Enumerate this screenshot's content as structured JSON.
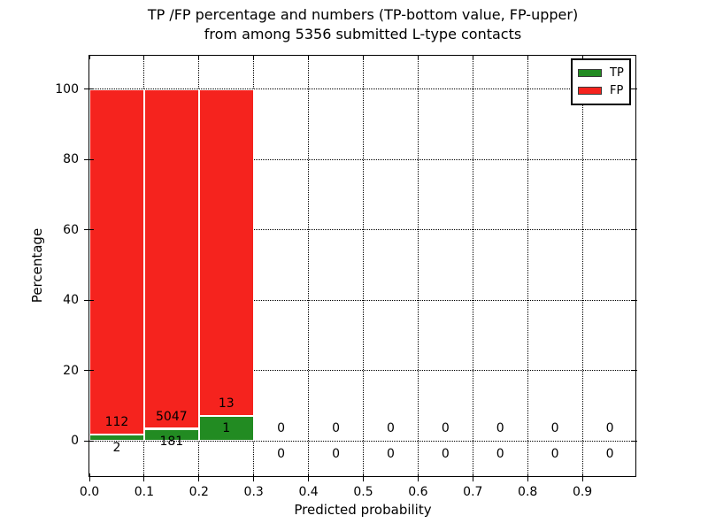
{
  "figure": {
    "title_line1": "TP /FP percentage and numbers (TP-bottom value, FP-upper)",
    "title_line2": "from among 5356 submitted L-type contacts",
    "xlabel": "Predicted probability",
    "ylabel": "Percentage"
  },
  "legend": {
    "items": [
      {
        "label": "TP",
        "color": "#228b22"
      },
      {
        "label": "FP",
        "color": "#f5231e"
      }
    ]
  },
  "chart_data": {
    "type": "bar",
    "stacked": true,
    "title": "TP /FP percentage and numbers (TP-bottom value, FP-upper) from among 5356 submitted L-type contacts",
    "xlabel": "Predicted probability",
    "ylabel": "Percentage",
    "total_submitted": 5356,
    "xlim": [
      0.0,
      1.0
    ],
    "ylim": [
      -10.5,
      109.5
    ],
    "xticks": [
      0.0,
      0.1,
      0.2,
      0.3,
      0.4,
      0.5,
      0.6,
      0.7,
      0.8,
      0.9
    ],
    "xtick_labels": [
      "0.0",
      "0.1",
      "0.2",
      "0.3",
      "0.4",
      "0.5",
      "0.6",
      "0.7",
      "0.8",
      "0.9"
    ],
    "yticks": [
      0,
      20,
      40,
      60,
      80,
      100
    ],
    "grid": "dotted",
    "legend_position": "upper right",
    "bin_width": 0.1,
    "bin_starts": [
      0.0,
      0.1,
      0.2,
      0.3,
      0.4,
      0.5,
      0.6,
      0.7,
      0.8,
      0.9
    ],
    "series": [
      {
        "name": "TP",
        "color": "#228b22",
        "counts": [
          2,
          181,
          1,
          0,
          0,
          0,
          0,
          0,
          0,
          0
        ],
        "percentages": [
          1.75,
          3.46,
          7.14,
          0,
          0,
          0,
          0,
          0,
          0,
          0
        ]
      },
      {
        "name": "FP",
        "color": "#f5231e",
        "counts": [
          112,
          5047,
          13,
          0,
          0,
          0,
          0,
          0,
          0,
          0
        ],
        "percentages": [
          98.25,
          96.54,
          92.86,
          0,
          0,
          0,
          0,
          0,
          0,
          0
        ]
      }
    ],
    "label_rule": "FP count drawn above TP bar top, TP count drawn below TP bar top"
  }
}
